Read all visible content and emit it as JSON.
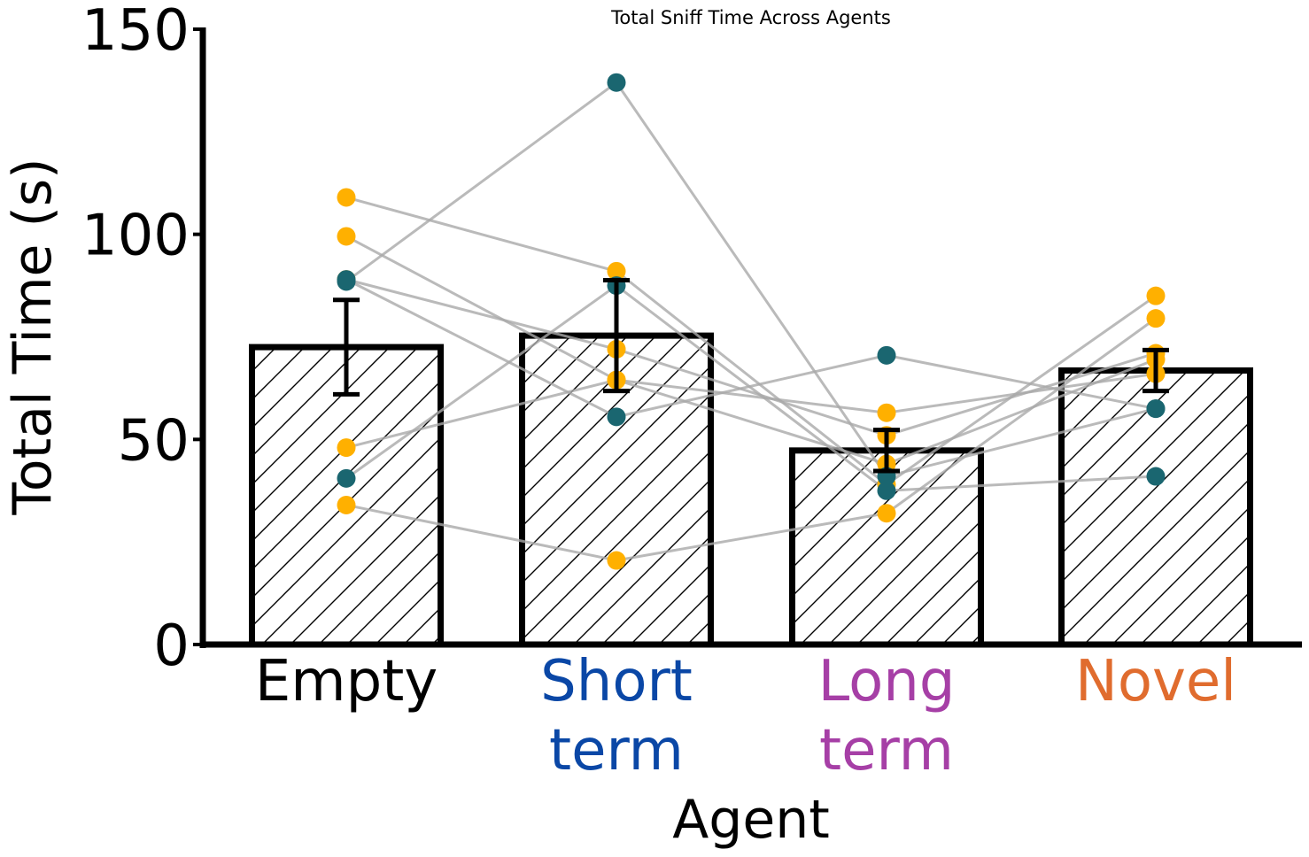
{
  "chart_data": {
    "type": "bar",
    "title": "Total Sniff Time Across Agents",
    "xlabel": "Agent",
    "ylabel": "Total Time (s)",
    "ylim": [
      0,
      150
    ],
    "yticks": [
      "0",
      "50",
      "100",
      "150"
    ],
    "categories": [
      {
        "lines": [
          "Empty"
        ],
        "color": "#000000"
      },
      {
        "lines": [
          "Short",
          "term"
        ],
        "color": "#0a47a6"
      },
      {
        "lines": [
          "Long",
          "term"
        ],
        "color": "#a63fa6"
      },
      {
        "lines": [
          "Novel"
        ],
        "color": "#e06c2e"
      }
    ],
    "bars": [
      {
        "value": 72.5,
        "err": 11.5
      },
      {
        "value": 75.3,
        "err": 13.5
      },
      {
        "value": 47.3,
        "err": 5.0
      },
      {
        "value": 66.8,
        "err": 5.0
      }
    ],
    "subjects": [
      {
        "color": "#ffb000",
        "values": [
          109,
          91,
          39,
          85
        ]
      },
      {
        "color": "#ffb000",
        "values": [
          99.5,
          64.5,
          44,
          69.5
        ]
      },
      {
        "color": "#ffb000",
        "values": [
          89,
          72,
          51,
          71
        ]
      },
      {
        "color": "#ffb000",
        "values": [
          48,
          64.5,
          56.5,
          66
        ]
      },
      {
        "color": "#ffb000",
        "values": [
          34,
          20.5,
          32,
          79.5
        ]
      },
      {
        "color": "#1a6670",
        "values": [
          88.5,
          137,
          41,
          57.5
        ]
      },
      {
        "color": "#1a6670",
        "values": [
          40.5,
          87.5,
          37.5,
          41
        ]
      },
      {
        "color": "#1a6670",
        "values": [
          89,
          55.5,
          70.5,
          57.5
        ]
      }
    ],
    "grid": false,
    "legend": "none",
    "bar_pattern": "diagonal hatch"
  }
}
